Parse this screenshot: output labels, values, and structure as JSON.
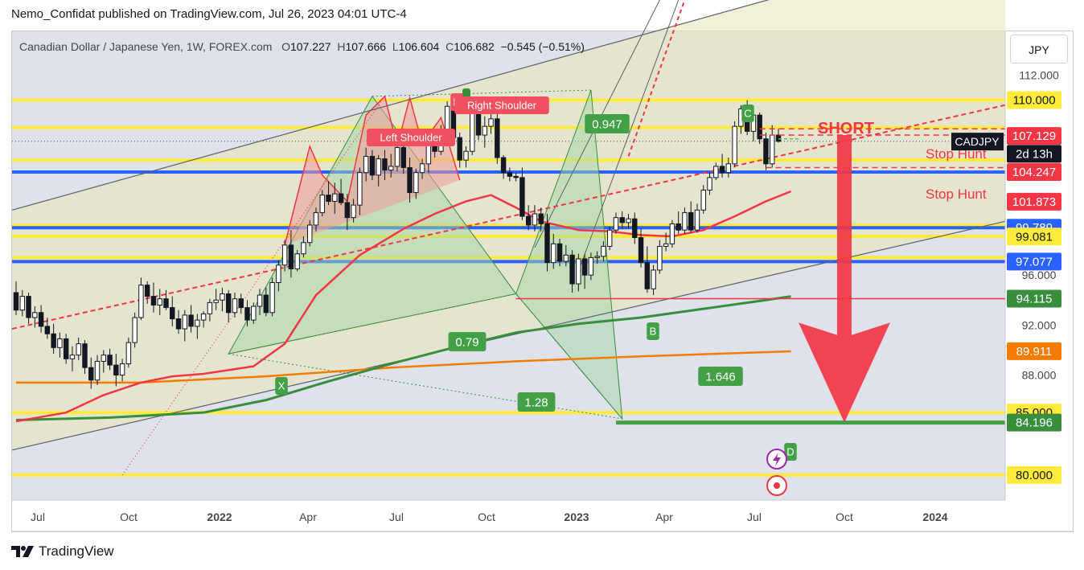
{
  "publisher_line": "Nemo_Confidat published on TradingView.com, Jul 26, 2023 04:01 UTC-4",
  "symbol": {
    "name": "Canadian Dollar / Japanese Yen, 1W, FOREX.com",
    "o_label": "O",
    "o": "107.227",
    "h_label": "H",
    "h": "107.666",
    "l_label": "L",
    "l": "106.604",
    "c_label": "C",
    "c": "106.682",
    "change": "−0.545 (−0.51%)"
  },
  "currency_button": "JPY",
  "brand": "TradingView",
  "colors": {
    "background": "#dfe2ea",
    "yellow_level": "#ffeb3b",
    "blue_level": "#2962ff",
    "red": "#f23645",
    "green": "#388e3c",
    "orange": "#f57c00",
    "pattern_fill": "#a5d6a7",
    "hs_fill": "#ef9a9a"
  },
  "chart_data": {
    "type": "candlestick",
    "timeframe": "1W",
    "ylim": [
      78.0,
      115.5
    ],
    "y_ticks": [
      "112.000",
      "96.000",
      "92.000",
      "88.000"
    ],
    "x_ticks": [
      "Jul",
      "Oct",
      "2022",
      "Apr",
      "Jul",
      "Oct",
      "2023",
      "Apr",
      "Jul",
      "Oct",
      "2024"
    ],
    "price_badges": [
      {
        "text": "110.000",
        "value": 110.0,
        "color": "yellow"
      },
      {
        "text": "107.129",
        "value": 107.129,
        "color": "red"
      },
      {
        "text": "CADJPY",
        "value": 106.68,
        "color": "black"
      },
      {
        "text": "2d 13h",
        "value": 105.7,
        "color": "black"
      },
      {
        "text": "104.247",
        "value": 104.247,
        "color": "red"
      },
      {
        "text": "101.873",
        "value": 101.873,
        "color": "red"
      },
      {
        "text": "99.789",
        "value": 99.79,
        "color": "blue"
      },
      {
        "text": "99.081",
        "value": 99.081,
        "color": "yellow"
      },
      {
        "text": "97.077",
        "value": 97.077,
        "color": "blue"
      },
      {
        "text": "94.115",
        "value": 94.115,
        "color": "green"
      },
      {
        "text": "89.911",
        "value": 89.911,
        "color": "orange"
      },
      {
        "text": "85.000",
        "value": 85.0,
        "color": "yellow"
      },
      {
        "text": "84.196",
        "value": 84.196,
        "color": "green"
      },
      {
        "text": "80.000",
        "value": 80.0,
        "color": "yellow"
      }
    ],
    "yellow_levels": [
      110.0,
      107.8,
      105.2,
      100.0,
      99.1,
      97.4,
      85.0,
      80.0
    ],
    "blue_levels": [
      104.247,
      99.79,
      97.077
    ],
    "annotations": {
      "short": "SHORT",
      "stop_hunt_top": "Stop Hunt",
      "stop_hunt_bottom": "Stop Hunt",
      "left_shoulder": "Left Shoulder",
      "head": "H",
      "right_shoulder": "Right Shoulder",
      "pattern_points": [
        "X",
        "B",
        "C",
        "D"
      ],
      "ratios": [
        "0.947",
        "0.79",
        "1.646",
        "1.28"
      ]
    },
    "candles": [
      [
        94.6,
        95.5,
        92.8,
        93.2
      ],
      [
        93.2,
        94.8,
        92.7,
        94.3
      ],
      [
        94.3,
        94.6,
        92.1,
        92.6
      ],
      [
        92.6,
        93.5,
        91.8,
        93.0
      ],
      [
        93.0,
        93.6,
        91.4,
        91.9
      ],
      [
        91.9,
        92.6,
        90.9,
        91.3
      ],
      [
        91.3,
        92.1,
        89.7,
        90.2
      ],
      [
        90.2,
        91.4,
        89.4,
        90.9
      ],
      [
        90.9,
        91.3,
        88.9,
        89.3
      ],
      [
        89.3,
        90.3,
        88.3,
        89.6
      ],
      [
        89.6,
        91.0,
        89.2,
        90.5
      ],
      [
        90.5,
        90.8,
        88.1,
        88.6
      ],
      [
        88.6,
        89.4,
        86.9,
        87.6
      ],
      [
        87.6,
        89.6,
        87.2,
        89.1
      ],
      [
        89.1,
        90.0,
        88.2,
        89.6
      ],
      [
        89.6,
        90.1,
        88.4,
        88.8
      ],
      [
        88.8,
        89.7,
        87.1,
        88.0
      ],
      [
        88.0,
        89.3,
        87.5,
        88.9
      ],
      [
        88.9,
        91.0,
        88.6,
        90.6
      ],
      [
        90.6,
        93.0,
        90.2,
        92.6
      ],
      [
        92.6,
        95.8,
        92.4,
        95.2
      ],
      [
        95.2,
        95.5,
        93.7,
        94.3
      ],
      [
        94.3,
        95.4,
        93.0,
        93.6
      ],
      [
        93.6,
        94.9,
        92.8,
        94.1
      ],
      [
        94.1,
        94.8,
        93.2,
        93.4
      ],
      [
        93.4,
        94.3,
        91.9,
        92.5
      ],
      [
        92.5,
        93.2,
        91.3,
        91.7
      ],
      [
        91.7,
        93.2,
        90.7,
        92.8
      ],
      [
        92.8,
        93.6,
        91.4,
        91.9
      ],
      [
        91.9,
        92.9,
        90.9,
        92.4
      ],
      [
        92.4,
        93.1,
        91.8,
        92.9
      ],
      [
        92.9,
        94.1,
        92.3,
        93.8
      ],
      [
        93.8,
        94.9,
        93.2,
        94.0
      ],
      [
        94.0,
        95.0,
        93.1,
        94.5
      ],
      [
        94.5,
        94.8,
        92.2,
        93.0
      ],
      [
        93.0,
        94.6,
        92.6,
        94.1
      ],
      [
        94.1,
        94.5,
        92.9,
        93.4
      ],
      [
        93.4,
        94.0,
        91.9,
        92.4
      ],
      [
        92.4,
        93.8,
        92.1,
        93.5
      ],
      [
        93.5,
        94.9,
        92.8,
        94.4
      ],
      [
        94.4,
        95.0,
        92.7,
        93.0
      ],
      [
        93.0,
        95.8,
        92.7,
        95.4
      ],
      [
        95.4,
        97.2,
        94.7,
        96.8
      ],
      [
        96.8,
        98.8,
        96.3,
        98.4
      ],
      [
        98.4,
        99.6,
        95.8,
        96.5
      ],
      [
        96.5,
        98.0,
        96.3,
        97.7
      ],
      [
        97.7,
        99.1,
        97.4,
        98.6
      ],
      [
        98.6,
        100.4,
        98.3,
        100.0
      ],
      [
        100.0,
        101.4,
        99.5,
        101.0
      ],
      [
        101.0,
        102.8,
        100.7,
        102.4
      ],
      [
        102.4,
        103.5,
        101.6,
        101.9
      ],
      [
        101.9,
        103.4,
        100.9,
        102.5
      ],
      [
        102.5,
        103.7,
        101.6,
        101.8
      ],
      [
        101.8,
        102.5,
        99.6,
        100.6
      ],
      [
        100.6,
        102.1,
        100.2,
        101.6
      ],
      [
        101.6,
        104.6,
        100.8,
        104.2
      ],
      [
        104.2,
        106.2,
        103.5,
        105.5
      ],
      [
        105.5,
        106.0,
        103.6,
        104.0
      ],
      [
        104.0,
        105.6,
        103.1,
        105.3
      ],
      [
        105.3,
        106.0,
        103.6,
        104.4
      ],
      [
        104.4,
        105.7,
        103.8,
        104.7
      ],
      [
        104.7,
        106.8,
        104.3,
        106.2
      ],
      [
        106.2,
        106.8,
        104.1,
        104.6
      ],
      [
        104.6,
        105.4,
        101.8,
        102.6
      ],
      [
        102.6,
        104.5,
        102.1,
        104.2
      ],
      [
        104.2,
        105.3,
        103.7,
        104.9
      ],
      [
        104.9,
        106.8,
        104.2,
        106.5
      ],
      [
        106.5,
        107.5,
        105.4,
        105.9
      ],
      [
        105.9,
        108.0,
        105.6,
        107.6
      ],
      [
        107.6,
        109.9,
        107.2,
        109.5
      ],
      [
        109.5,
        110.3,
        106.7,
        107.0
      ],
      [
        107.0,
        107.4,
        104.6,
        105.2
      ],
      [
        105.2,
        106.3,
        104.6,
        105.9
      ],
      [
        105.9,
        110.1,
        105.6,
        109.3
      ],
      [
        109.3,
        109.6,
        106.8,
        107.2
      ],
      [
        107.2,
        108.7,
        106.2,
        107.9
      ],
      [
        107.9,
        109.5,
        107.3,
        108.5
      ],
      [
        108.5,
        108.9,
        104.9,
        105.4
      ],
      [
        105.4,
        105.6,
        103.7,
        104.2
      ],
      [
        104.2,
        104.6,
        103.5,
        103.9
      ],
      [
        103.9,
        104.2,
        103.5,
        103.8
      ],
      [
        103.8,
        104.6,
        100.4,
        100.7
      ],
      [
        100.7,
        101.6,
        99.6,
        100.0
      ],
      [
        100.0,
        101.6,
        99.5,
        100.9
      ],
      [
        100.9,
        101.4,
        99.5,
        100.1
      ],
      [
        100.1,
        100.9,
        96.3,
        97.0
      ],
      [
        97.0,
        99.3,
        96.5,
        98.5
      ],
      [
        98.5,
        98.9,
        96.7,
        97.1
      ],
      [
        97.1,
        98.4,
        96.7,
        97.6
      ],
      [
        97.6,
        98.0,
        94.6,
        95.3
      ],
      [
        95.3,
        97.7,
        94.7,
        97.3
      ],
      [
        97.3,
        97.7,
        94.9,
        96.0
      ],
      [
        96.0,
        97.8,
        95.6,
        97.4
      ],
      [
        97.4,
        97.9,
        96.9,
        97.5
      ],
      [
        97.5,
        98.7,
        97.1,
        98.3
      ],
      [
        98.3,
        99.9,
        98.0,
        99.6
      ],
      [
        99.6,
        101.0,
        99.3,
        100.6
      ],
      [
        100.6,
        101.1,
        99.7,
        100.2
      ],
      [
        100.2,
        100.9,
        99.7,
        100.5
      ],
      [
        100.5,
        101.0,
        98.5,
        99.0
      ],
      [
        99.0,
        99.7,
        96.6,
        97.0
      ],
      [
        97.0,
        98.3,
        94.6,
        94.9
      ],
      [
        94.9,
        96.8,
        94.4,
        96.4
      ],
      [
        96.4,
        98.8,
        96.1,
        98.3
      ],
      [
        98.3,
        99.4,
        97.9,
        98.5
      ],
      [
        98.5,
        100.4,
        98.2,
        100.1
      ],
      [
        100.1,
        101.1,
        99.3,
        99.6
      ],
      [
        99.6,
        101.4,
        99.3,
        101.0
      ],
      [
        101.0,
        101.9,
        99.4,
        99.6
      ],
      [
        99.6,
        101.7,
        99.4,
        101.2
      ],
      [
        101.2,
        103.2,
        100.9,
        102.8
      ],
      [
        102.8,
        104.2,
        102.4,
        103.8
      ],
      [
        103.8,
        105.0,
        103.6,
        104.7
      ],
      [
        104.7,
        105.7,
        103.8,
        104.2
      ],
      [
        104.2,
        105.4,
        103.8,
        104.9
      ],
      [
        104.9,
        108.3,
        104.6,
        107.9
      ],
      [
        107.9,
        109.6,
        107.3,
        109.3
      ],
      [
        109.3,
        110.0,
        107.2,
        107.5
      ],
      [
        107.5,
        109.2,
        106.7,
        108.8
      ],
      [
        108.8,
        109.0,
        106.5,
        106.9
      ],
      [
        106.9,
        107.4,
        104.4,
        104.9
      ],
      [
        104.9,
        108.0,
        104.6,
        107.2
      ],
      [
        107.2,
        107.7,
        106.6,
        106.7
      ]
    ],
    "ema_red": [
      [
        0,
        84.3
      ],
      [
        8,
        85.0
      ],
      [
        14,
        86.4
      ],
      [
        20,
        87.4
      ],
      [
        25,
        87.9
      ],
      [
        30,
        88.1
      ],
      [
        38,
        88.7
      ],
      [
        43,
        90.5
      ],
      [
        48,
        94.4
      ],
      [
        55,
        97.6
      ],
      [
        62,
        99.7
      ],
      [
        67,
        100.9
      ],
      [
        72,
        101.9
      ],
      [
        76,
        102.4
      ],
      [
        80,
        101.4
      ],
      [
        84,
        100.3
      ],
      [
        90,
        99.6
      ],
      [
        95,
        99.5
      ],
      [
        100,
        99.2
      ],
      [
        105,
        99.1
      ],
      [
        110,
        99.6
      ],
      [
        115,
        100.7
      ],
      [
        120,
        101.9
      ],
      [
        124,
        102.7
      ]
    ],
    "ema_green": [
      [
        0,
        84.4
      ],
      [
        15,
        84.6
      ],
      [
        30,
        85.0
      ],
      [
        40,
        86.0
      ],
      [
        50,
        87.5
      ],
      [
        60,
        88.9
      ],
      [
        70,
        90.2
      ],
      [
        80,
        91.4
      ],
      [
        90,
        92.1
      ],
      [
        100,
        92.6
      ],
      [
        110,
        93.3
      ],
      [
        120,
        94.0
      ],
      [
        124,
        94.3
      ]
    ],
    "ema_orange": [
      [
        0,
        87.4
      ],
      [
        20,
        87.4
      ],
      [
        40,
        87.9
      ],
      [
        60,
        88.6
      ],
      [
        80,
        89.1
      ],
      [
        100,
        89.5
      ],
      [
        124,
        89.9
      ]
    ],
    "harmonic": {
      "X": [
        34,
        89.7
      ],
      "A": [
        57,
        110.3
      ],
      "B": [
        80,
        94.5
      ],
      "C": [
        92,
        110.8
      ],
      "D": [
        97,
        84.5
      ]
    }
  }
}
